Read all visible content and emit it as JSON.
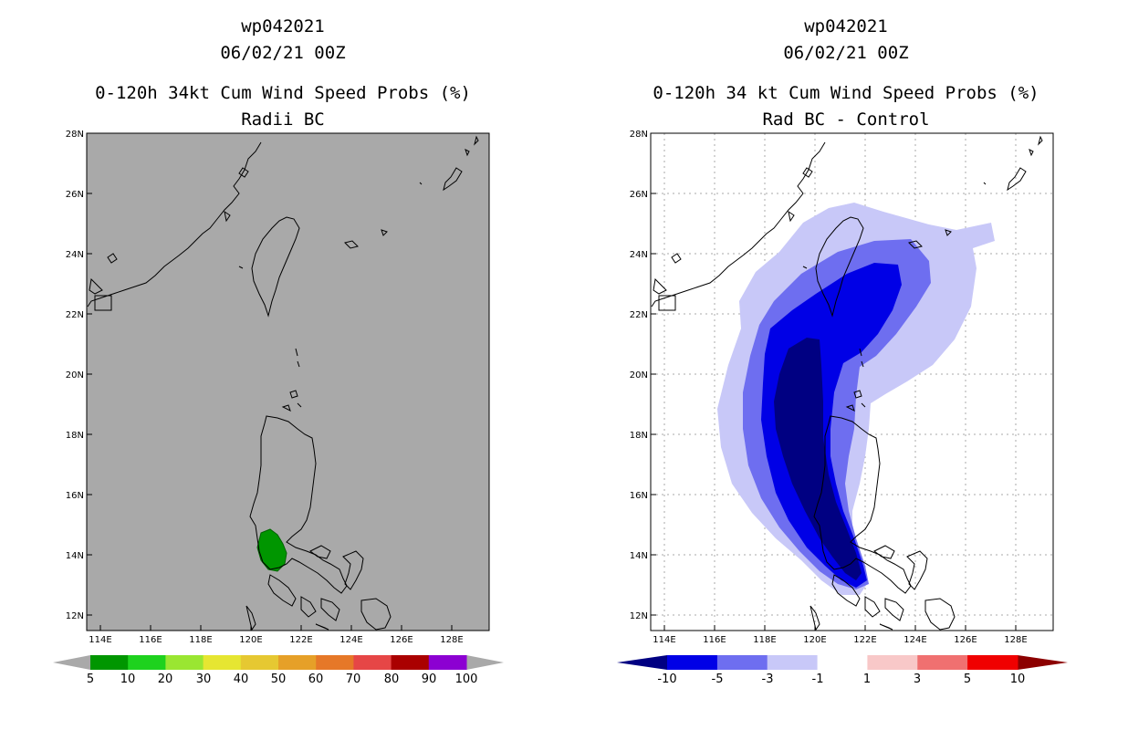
{
  "left_panel": {
    "title_lines": [
      "wp042021",
      "06/02/21 00Z",
      "0-120h 34kt Cum Wind Speed Probs (%)",
      "Radii BC"
    ],
    "latitude_labels": [
      "28N",
      "26N",
      "24N",
      "22N",
      "20N",
      "18N",
      "16N",
      "14N",
      "12N"
    ],
    "longitude_labels": [
      "114E",
      "116E",
      "118E",
      "120E",
      "122E",
      "124E",
      "126E",
      "128E"
    ],
    "background_color": "#a9a9a9",
    "colorbar": {
      "labels": [
        "5",
        "10",
        "20",
        "30",
        "40",
        "50",
        "60",
        "70",
        "80",
        "90",
        "100"
      ],
      "colors": [
        "#009600",
        "#1ed21e",
        "#9ae632",
        "#e6e632",
        "#e6c832",
        "#e6a028",
        "#e67828",
        "#e64646",
        "#aa0000",
        "#8c00d2"
      ]
    }
  },
  "right_panel": {
    "title_lines": [
      "wp042021",
      "06/02/21 00Z",
      "0-120h 34 kt Cum Wind Speed Probs (%)",
      "Rad BC - Control"
    ],
    "latitude_labels": [
      "28N",
      "26N",
      "24N",
      "22N",
      "20N",
      "18N",
      "16N",
      "14N",
      "12N"
    ],
    "longitude_labels": [
      "114E",
      "116E",
      "118E",
      "120E",
      "122E",
      "124E",
      "126E",
      "128E"
    ],
    "colorbar": {
      "labels": [
        "-10",
        "-5",
        "-3",
        "-1",
        "1",
        "3",
        "5",
        "10"
      ],
      "colors": [
        "#0000e6",
        "#6e6ef0",
        "#c8c8f8",
        "#ffffff",
        "#f8c8c8",
        "#f07070",
        "#f00000"
      ],
      "low_end_color": "#000082",
      "high_end_color": "#8c0000"
    },
    "difference_fill_colors": [
      "#c8c8f8",
      "#6e6ef0",
      "#0000e6",
      "#000082"
    ]
  }
}
